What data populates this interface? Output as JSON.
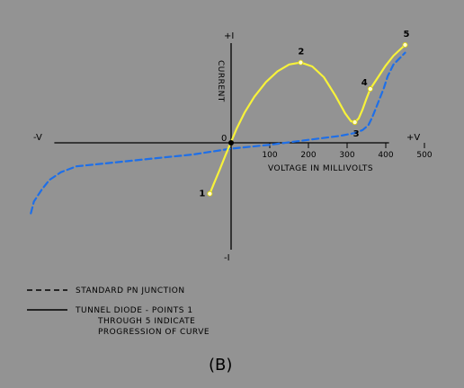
{
  "chart_data": {
    "type": "line",
    "xlabel": "VOLTAGE IN MILLIVOLTS",
    "ylabel": "CURRENT",
    "axis_ends": {
      "x_neg": "-V",
      "x_pos": "+V",
      "y_pos": "+I",
      "y_neg": "-I"
    },
    "origin_label": "0",
    "x_ticks": [
      100,
      200,
      300,
      400,
      500
    ],
    "xlim": [
      -520,
      520
    ],
    "ylim": [
      -1.0,
      1.0
    ],
    "grid": false,
    "colors": {
      "tunnel": "#f7f23a",
      "standard": "#1e6fe8",
      "points": "#fffbd0",
      "background": "#939393"
    },
    "series": [
      {
        "name": "STANDARD PN JUNCTION",
        "style": "dashed",
        "x": [
          -518,
          -510,
          -490,
          -470,
          -440,
          -400,
          -300,
          -200,
          -100,
          0,
          100,
          200,
          280,
          320,
          340,
          355,
          365,
          375,
          385,
          395,
          405,
          420,
          450
        ],
        "y": [
          -0.72,
          -0.6,
          -0.48,
          -0.38,
          -0.3,
          -0.24,
          -0.2,
          -0.16,
          -0.12,
          -0.06,
          -0.02,
          0.03,
          0.07,
          0.1,
          0.13,
          0.18,
          0.26,
          0.36,
          0.46,
          0.56,
          0.68,
          0.8,
          0.92
        ]
      },
      {
        "name": "TUNNEL DIODE - POINTS 1 THROUGH 5 INDICATE PROGRESSION OF CURVE",
        "style": "solid",
        "x": [
          -55,
          -45,
          -30,
          -15,
          0,
          15,
          35,
          60,
          90,
          120,
          150,
          180,
          210,
          240,
          270,
          295,
          310,
          320,
          330,
          340,
          350,
          360,
          380,
          400,
          420,
          450
        ],
        "y": [
          -0.52,
          -0.42,
          -0.28,
          -0.13,
          0.01,
          0.15,
          0.31,
          0.47,
          0.62,
          0.73,
          0.8,
          0.82,
          0.78,
          0.67,
          0.48,
          0.3,
          0.22,
          0.21,
          0.25,
          0.34,
          0.45,
          0.55,
          0.67,
          0.79,
          0.89,
          1.0
        ]
      }
    ],
    "points": [
      {
        "label": "1",
        "x": -55,
        "y": -0.52
      },
      {
        "label": "2",
        "x": 180,
        "y": 0.82
      },
      {
        "label": "3",
        "x": 320,
        "y": 0.21
      },
      {
        "label": "4",
        "x": 360,
        "y": 0.55
      },
      {
        "label": "5",
        "x": 450,
        "y": 1.0
      }
    ],
    "legend": {
      "placement": "bottom-left",
      "standard_label": "STANDARD PN JUNCTION",
      "tunnel_label_lines": [
        "TUNNEL DIODE - POINTS 1",
        "THROUGH 5 INDICATE",
        "PROGRESSION OF CURVE"
      ]
    },
    "panel_label": "(B)"
  }
}
